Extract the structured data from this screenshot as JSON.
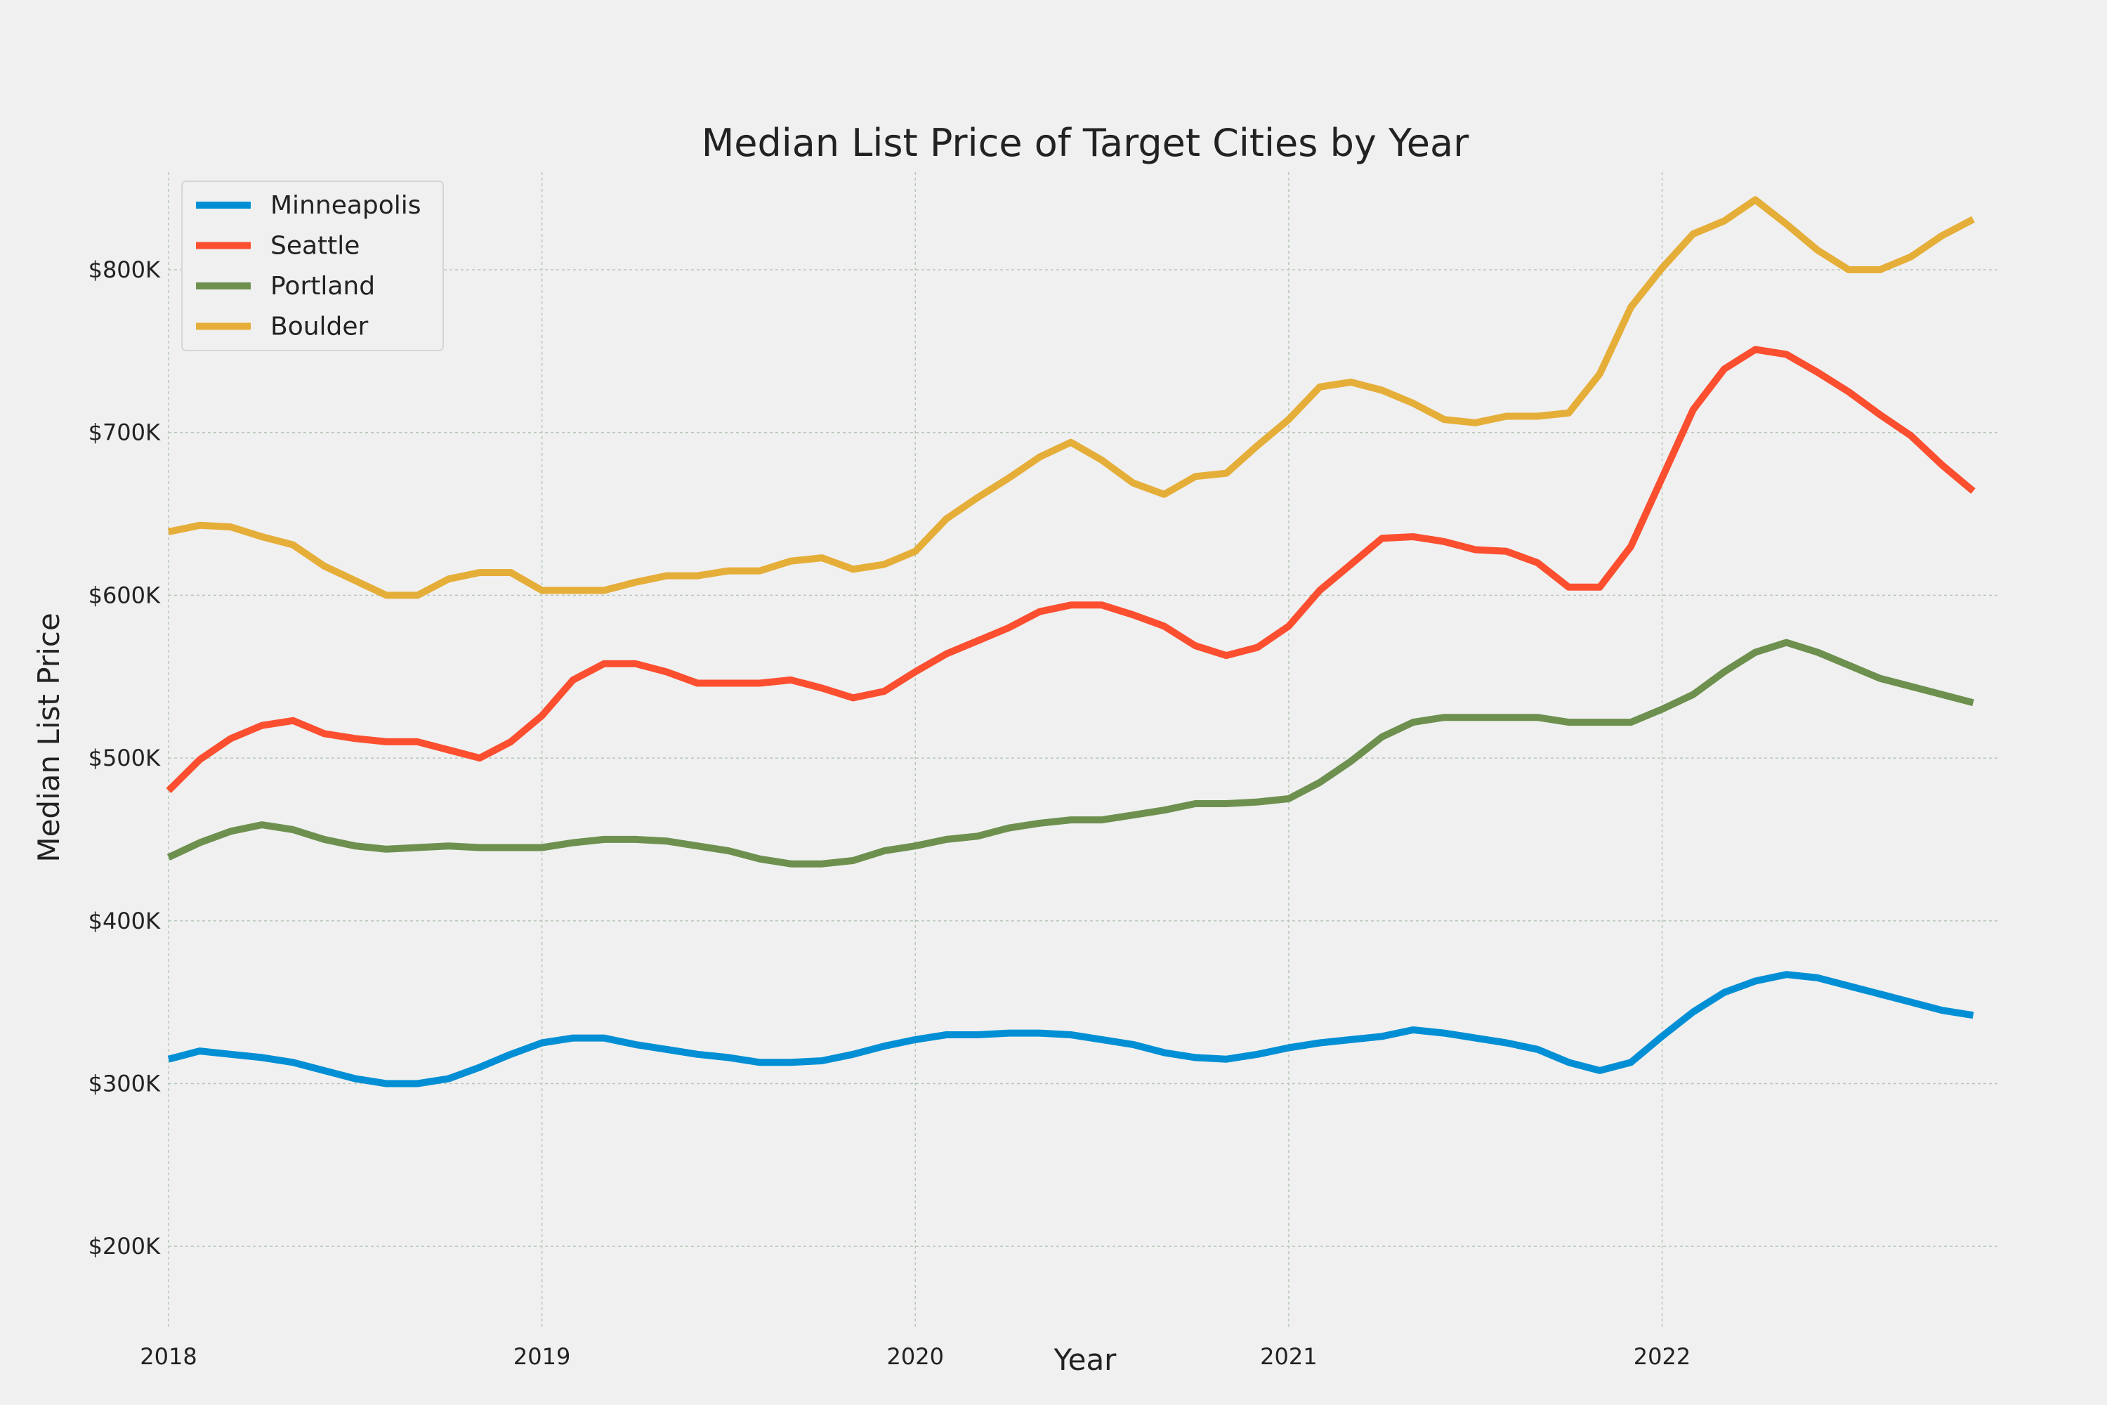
{
  "chart_data": {
    "type": "line",
    "title": "Median List Price of Target Cities by Year",
    "xlabel": "Year",
    "ylabel": "Median List Price",
    "x_start": 2018.0,
    "x_step": 0.08333,
    "xlim": [
      2018.0,
      2022.9
    ],
    "ylim": [
      150000,
      860000
    ],
    "xticks": [
      2018,
      2019,
      2020,
      2021,
      2022
    ],
    "xtick_labels": [
      "2018",
      "2019",
      "2020",
      "2021",
      "2022"
    ],
    "yticks": [
      200000,
      300000,
      400000,
      500000,
      600000,
      700000,
      800000
    ],
    "ytick_labels": [
      "$200K",
      "$300K",
      "$400K",
      "$500K",
      "$600K",
      "$700K",
      "$800K"
    ],
    "grid": true,
    "legend_position": "top-left",
    "series": [
      {
        "name": "Minneapolis",
        "color": "#008fd5",
        "values": [
          315000,
          320000,
          318000,
          316000,
          313000,
          308000,
          303000,
          300000,
          300000,
          303000,
          310000,
          318000,
          325000,
          328000,
          328000,
          324000,
          321000,
          318000,
          316000,
          313000,
          313000,
          314000,
          318000,
          323000,
          327000,
          330000,
          330000,
          331000,
          331000,
          330000,
          327000,
          324000,
          319000,
          316000,
          315000,
          318000,
          322000,
          325000,
          327000,
          329000,
          333000,
          331000,
          328000,
          325000,
          321000,
          313000,
          308000,
          313000,
          329000,
          344000,
          356000,
          363000,
          367000,
          365000,
          360000,
          355000,
          350000,
          345000,
          342000
        ]
      },
      {
        "name": "Seattle",
        "color": "#fc4f30",
        "values": [
          480000,
          499000,
          512000,
          520000,
          523000,
          515000,
          512000,
          510000,
          510000,
          505000,
          500000,
          510000,
          526000,
          548000,
          558000,
          558000,
          553000,
          546000,
          546000,
          546000,
          548000,
          543000,
          537000,
          541000,
          553000,
          564000,
          572000,
          580000,
          590000,
          594000,
          594000,
          588000,
          581000,
          569000,
          563000,
          568000,
          581000,
          603000,
          619000,
          635000,
          636000,
          633000,
          628000,
          627000,
          620000,
          605000,
          605000,
          630000,
          672000,
          714000,
          739000,
          751000,
          748000,
          737000,
          725000,
          711000,
          698000,
          680000,
          664000
        ]
      },
      {
        "name": "Portland",
        "color": "#6d904f",
        "values": [
          439000,
          448000,
          455000,
          459000,
          456000,
          450000,
          446000,
          444000,
          445000,
          446000,
          445000,
          445000,
          445000,
          448000,
          450000,
          450000,
          449000,
          446000,
          443000,
          438000,
          435000,
          435000,
          437000,
          443000,
          446000,
          450000,
          452000,
          457000,
          460000,
          462000,
          462000,
          465000,
          468000,
          472000,
          472000,
          473000,
          475000,
          485000,
          498000,
          513000,
          522000,
          525000,
          525000,
          525000,
          525000,
          522000,
          522000,
          522000,
          530000,
          539000,
          553000,
          565000,
          571000,
          565000,
          557000,
          549000,
          544000,
          539000,
          534000
        ]
      },
      {
        "name": "Boulder",
        "color": "#e5ae38",
        "values": [
          639000,
          643000,
          642000,
          636000,
          631000,
          618000,
          609000,
          600000,
          600000,
          610000,
          614000,
          614000,
          603000,
          603000,
          603000,
          608000,
          612000,
          612000,
          615000,
          615000,
          621000,
          623000,
          616000,
          619000,
          627000,
          647000,
          660000,
          672000,
          685000,
          694000,
          683000,
          669000,
          662000,
          673000,
          675000,
          692000,
          708000,
          728000,
          731000,
          726000,
          718000,
          708000,
          706000,
          710000,
          710000,
          712000,
          736000,
          777000,
          801000,
          822000,
          830000,
          843000,
          828000,
          812000,
          800000,
          800000,
          808000,
          821000,
          831000
        ]
      }
    ]
  }
}
